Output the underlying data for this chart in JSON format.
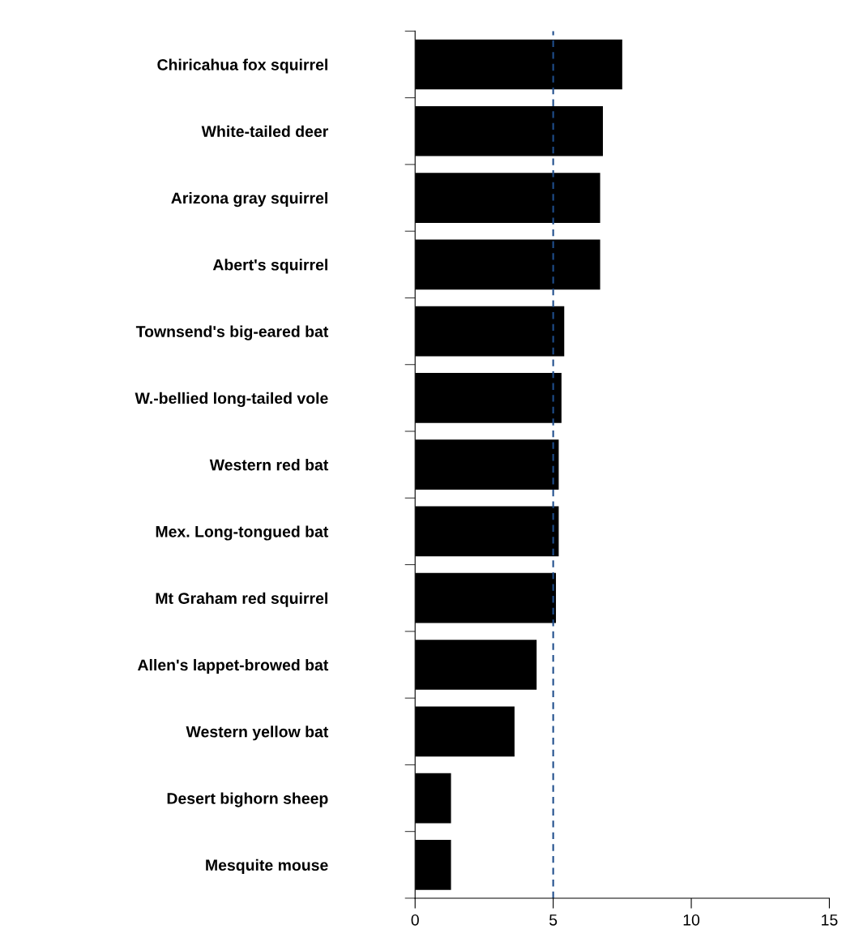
{
  "chart_data": {
    "type": "bar",
    "orientation": "horizontal",
    "categories": [
      "Chiricahua fox squirrel",
      "White-tailed deer",
      "Arizona gray squirrel",
      "Abert's squirrel",
      "Townsend's big-eared bat",
      "W.-bellied long-tailed vole",
      "Western red bat",
      "Mex. Long-tongued bat",
      "Mt Graham red squirrel",
      "Allen's lappet-browed bat",
      "Western yellow bat",
      "Desert bighorn sheep",
      "Mesquite mouse"
    ],
    "values": [
      7.5,
      6.8,
      6.7,
      6.7,
      5.4,
      5.3,
      5.2,
      5.2,
      5.1,
      4.4,
      3.6,
      1.3,
      1.3
    ],
    "color": "#000000",
    "xlim": [
      0,
      15
    ],
    "xticks": [
      0,
      5,
      10,
      15
    ],
    "ref_lines": [
      {
        "axis": "x",
        "value": 5,
        "color": "#1f4e8c",
        "line_style": "dashed"
      }
    ],
    "grid": false,
    "legend": false
  }
}
